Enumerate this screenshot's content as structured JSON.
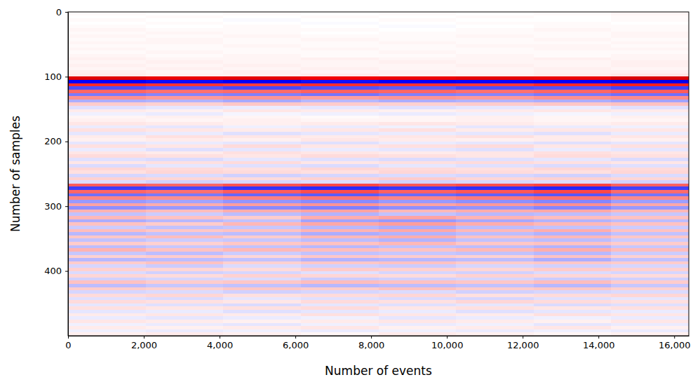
{
  "chart_data": {
    "type": "heatmap",
    "x_label": "Number of events",
    "y_label": "Number of samples",
    "xlim": [
      0,
      16384
    ],
    "ylim": [
      0,
      500
    ],
    "xticks": [
      0,
      {
        "value": 2000,
        "label": "2,000"
      },
      {
        "value": 4000,
        "label": "4,000"
      },
      {
        "value": 6000,
        "label": "6,000"
      },
      {
        "value": 8000,
        "label": "8,000"
      },
      {
        "value": 10000,
        "label": "10,000"
      },
      {
        "value": 12000,
        "label": "12,000"
      },
      {
        "value": 14000,
        "label": "14,000"
      },
      {
        "value": 16000,
        "label": "16,000"
      }
    ],
    "yticks": [
      0,
      100,
      200,
      300,
      400
    ],
    "zlim": [
      -1,
      1
    ],
    "x_edges": [
      0,
      2048,
      4096,
      6144,
      8192,
      10240,
      12288,
      14336,
      16384
    ],
    "y_edges": [
      0,
      5,
      10,
      15,
      20,
      25,
      30,
      35,
      40,
      45,
      50,
      55,
      60,
      65,
      70,
      75,
      80,
      85,
      90,
      95,
      100,
      105,
      110,
      115,
      120,
      125,
      130,
      135,
      140,
      145,
      150,
      155,
      160,
      165,
      170,
      175,
      180,
      185,
      190,
      195,
      200,
      205,
      210,
      215,
      220,
      225,
      230,
      235,
      240,
      245,
      250,
      255,
      260,
      265,
      270,
      275,
      280,
      285,
      290,
      295,
      300,
      305,
      310,
      315,
      320,
      325,
      330,
      335,
      340,
      345,
      350,
      355,
      360,
      365,
      370,
      375,
      380,
      385,
      390,
      395,
      400,
      405,
      410,
      415,
      420,
      425,
      430,
      435,
      440,
      445,
      450,
      455,
      460,
      465,
      470,
      475,
      480,
      485,
      490,
      495,
      500
    ],
    "values": [
      [
        0.01,
        0.0,
        0.01,
        0.0,
        0.01,
        0.0,
        0.01,
        0.02
      ],
      [
        0.0,
        0.01,
        0.0,
        0.01,
        0.0,
        0.01,
        0.0,
        0.01
      ],
      [
        0.01,
        0.0,
        -0.01,
        0.0,
        0.01,
        0.0,
        0.0,
        0.01
      ],
      [
        0.0,
        0.01,
        0.0,
        -0.01,
        0.0,
        0.01,
        0.01,
        0.0
      ],
      [
        0.01,
        0.0,
        0.01,
        0.0,
        -0.01,
        0.0,
        0.01,
        0.01
      ],
      [
        0.02,
        0.01,
        0.01,
        0.01,
        0.0,
        0.01,
        0.02,
        0.01
      ],
      [
        0.01,
        0.02,
        0.01,
        0.0,
        0.01,
        0.01,
        0.01,
        0.02
      ],
      [
        0.02,
        0.01,
        0.02,
        0.01,
        0.01,
        0.02,
        0.01,
        0.02
      ],
      [
        0.01,
        0.02,
        0.01,
        0.02,
        0.01,
        0.01,
        0.02,
        0.01
      ],
      [
        0.02,
        0.02,
        0.01,
        0.01,
        0.02,
        0.01,
        0.01,
        0.02
      ],
      [
        0.01,
        0.01,
        0.02,
        0.01,
        0.01,
        0.02,
        0.02,
        0.01
      ],
      [
        0.02,
        0.01,
        0.01,
        0.02,
        0.01,
        0.01,
        0.02,
        0.02
      ],
      [
        0.01,
        0.02,
        0.01,
        0.01,
        0.02,
        0.01,
        0.01,
        0.01
      ],
      [
        0.02,
        0.01,
        0.02,
        0.01,
        0.01,
        0.02,
        0.01,
        0.02
      ],
      [
        0.03,
        0.02,
        0.02,
        0.03,
        0.02,
        0.02,
        0.03,
        0.02
      ],
      [
        0.02,
        0.03,
        0.02,
        0.02,
        0.03,
        0.02,
        0.02,
        0.03
      ],
      [
        0.03,
        0.02,
        0.03,
        0.02,
        0.02,
        0.03,
        0.02,
        0.03
      ],
      [
        0.02,
        0.03,
        0.02,
        0.03,
        0.02,
        0.02,
        0.03,
        0.02
      ],
      [
        0.03,
        0.02,
        0.03,
        0.02,
        0.03,
        0.02,
        0.03,
        0.03
      ],
      [
        0.04,
        0.03,
        0.03,
        0.04,
        0.03,
        0.03,
        0.04,
        0.05
      ],
      [
        0.62,
        0.58,
        0.6,
        0.55,
        0.57,
        0.6,
        0.58,
        0.65
      ],
      [
        -0.5,
        -0.48,
        -0.52,
        -0.47,
        -0.5,
        -0.49,
        -0.51,
        -0.55
      ],
      [
        0.42,
        0.4,
        0.38,
        0.41,
        0.4,
        0.39,
        0.42,
        0.44
      ],
      [
        -0.35,
        -0.33,
        -0.36,
        -0.34,
        -0.32,
        -0.35,
        -0.34,
        -0.37
      ],
      [
        0.3,
        0.28,
        0.29,
        0.31,
        0.3,
        0.28,
        0.3,
        0.32
      ],
      [
        -0.26,
        -0.24,
        -0.25,
        -0.27,
        -0.25,
        -0.24,
        -0.26,
        -0.28
      ],
      [
        0.22,
        0.2,
        0.21,
        0.19,
        0.21,
        0.2,
        0.22,
        0.23
      ],
      [
        -0.16,
        -0.15,
        -0.17,
        -0.14,
        -0.16,
        -0.15,
        -0.16,
        -0.18
      ],
      [
        0.1,
        0.09,
        0.11,
        0.1,
        0.09,
        0.1,
        0.11,
        0.12
      ],
      [
        -0.06,
        -0.05,
        -0.04,
        -0.05,
        -0.06,
        -0.05,
        -0.04,
        -0.06
      ],
      [
        0.04,
        0.03,
        0.05,
        0.04,
        0.03,
        0.04,
        0.05,
        0.04
      ],
      [
        -0.03,
        -0.04,
        -0.02,
        -0.03,
        -0.04,
        -0.03,
        -0.02,
        -0.03
      ],
      [
        0.02,
        0.03,
        0.02,
        0.01,
        0.02,
        0.03,
        0.02,
        0.03
      ],
      [
        0.03,
        0.02,
        0.03,
        0.02,
        0.02,
        0.03,
        0.02,
        0.02
      ],
      [
        0.05,
        0.04,
        0.03,
        0.04,
        0.05,
        0.04,
        0.03,
        0.04
      ],
      [
        -0.04,
        -0.05,
        -0.03,
        -0.04,
        -0.03,
        -0.05,
        -0.04,
        -0.03
      ],
      [
        0.06,
        0.05,
        0.04,
        0.05,
        0.06,
        0.04,
        0.05,
        0.05
      ],
      [
        -0.05,
        -0.04,
        -0.06,
        -0.05,
        -0.04,
        -0.05,
        -0.06,
        -0.04
      ],
      [
        0.04,
        0.06,
        0.05,
        0.04,
        0.05,
        0.06,
        0.04,
        0.05
      ],
      [
        0.03,
        0.04,
        0.03,
        0.05,
        0.04,
        0.03,
        0.04,
        0.03
      ],
      [
        -0.05,
        -0.04,
        -0.05,
        -0.06,
        -0.04,
        -0.05,
        -0.06,
        -0.05
      ],
      [
        0.06,
        0.05,
        0.07,
        0.05,
        0.06,
        0.07,
        0.05,
        0.06
      ],
      [
        -0.04,
        -0.06,
        -0.05,
        -0.04,
        -0.05,
        -0.06,
        -0.04,
        -0.05
      ],
      [
        0.05,
        0.04,
        0.06,
        0.05,
        0.04,
        0.05,
        0.06,
        0.05
      ],
      [
        0.07,
        0.06,
        0.05,
        0.07,
        0.06,
        0.05,
        0.07,
        0.06
      ],
      [
        -0.06,
        -0.07,
        -0.05,
        -0.06,
        -0.07,
        -0.06,
        -0.05,
        -0.07
      ],
      [
        0.05,
        0.06,
        0.07,
        0.05,
        0.06,
        0.07,
        0.06,
        0.05
      ],
      [
        -0.07,
        -0.05,
        -0.06,
        -0.07,
        -0.05,
        -0.06,
        -0.07,
        -0.06
      ],
      [
        0.08,
        0.07,
        0.06,
        0.08,
        0.07,
        0.06,
        0.08,
        0.07
      ],
      [
        0.06,
        0.08,
        0.07,
        0.06,
        0.08,
        0.07,
        0.06,
        0.08
      ],
      [
        -0.08,
        -0.07,
        -0.09,
        -0.08,
        -0.07,
        -0.08,
        -0.09,
        -0.07
      ],
      [
        0.09,
        0.08,
        0.07,
        0.09,
        0.1,
        0.08,
        0.09,
        0.08
      ],
      [
        -0.07,
        -0.09,
        -0.08,
        -0.07,
        -0.09,
        -0.08,
        -0.07,
        -0.09
      ],
      [
        0.32,
        0.3,
        0.34,
        0.36,
        0.33,
        0.35,
        0.37,
        0.31
      ],
      [
        -0.38,
        -0.36,
        -0.4,
        -0.42,
        -0.39,
        -0.41,
        -0.43,
        -0.37
      ],
      [
        0.3,
        0.28,
        0.32,
        0.35,
        0.31,
        0.33,
        0.36,
        0.29
      ],
      [
        -0.28,
        -0.26,
        -0.3,
        -0.32,
        -0.29,
        -0.31,
        -0.33,
        -0.27
      ],
      [
        0.24,
        0.22,
        0.25,
        0.27,
        0.24,
        0.26,
        0.28,
        0.23
      ],
      [
        -0.2,
        -0.18,
        -0.21,
        -0.23,
        -0.2,
        -0.22,
        -0.24,
        -0.19
      ],
      [
        0.18,
        0.16,
        0.19,
        0.21,
        0.18,
        0.2,
        0.22,
        0.17
      ],
      [
        -0.22,
        -0.2,
        -0.23,
        -0.25,
        -0.22,
        -0.21,
        -0.24,
        -0.2
      ],
      [
        0.15,
        0.13,
        0.16,
        0.18,
        0.14,
        0.16,
        0.17,
        0.14
      ],
      [
        -0.12,
        -0.1,
        -0.13,
        -0.15,
        -0.12,
        -0.14,
        -0.13,
        -0.11
      ],
      [
        0.14,
        0.12,
        0.1,
        0.16,
        0.18,
        0.15,
        0.13,
        0.12
      ],
      [
        -0.16,
        -0.14,
        -0.12,
        -0.18,
        -0.2,
        -0.17,
        -0.15,
        -0.13
      ],
      [
        0.12,
        0.1,
        0.14,
        0.17,
        0.19,
        0.16,
        0.14,
        0.12
      ],
      [
        -0.1,
        -0.12,
        -0.11,
        -0.14,
        -0.16,
        -0.13,
        -0.12,
        -0.1
      ],
      [
        0.13,
        0.11,
        0.12,
        0.15,
        0.17,
        0.14,
        0.16,
        0.12
      ],
      [
        -0.14,
        -0.12,
        -0.13,
        -0.16,
        -0.15,
        -0.13,
        -0.15,
        -0.12
      ],
      [
        0.11,
        0.13,
        0.1,
        0.14,
        0.16,
        0.12,
        0.14,
        0.11
      ],
      [
        -0.12,
        -0.1,
        -0.11,
        -0.13,
        -0.15,
        -0.12,
        -0.13,
        -0.1
      ],
      [
        0.1,
        0.09,
        0.11,
        0.12,
        0.14,
        0.11,
        0.12,
        0.1
      ],
      [
        -0.13,
        -0.11,
        -0.12,
        -0.14,
        -0.12,
        -0.13,
        -0.15,
        -0.11
      ],
      [
        0.15,
        0.12,
        0.14,
        0.13,
        0.12,
        0.14,
        0.16,
        0.13
      ],
      [
        -0.11,
        -0.13,
        -0.1,
        -0.12,
        -0.11,
        -0.12,
        -0.14,
        -0.1
      ],
      [
        0.09,
        0.1,
        0.08,
        0.11,
        0.1,
        0.09,
        0.12,
        0.09
      ],
      [
        -0.14,
        -0.13,
        -0.12,
        -0.15,
        -0.14,
        -0.13,
        -0.16,
        -0.12
      ],
      [
        0.1,
        0.12,
        0.09,
        0.11,
        0.12,
        0.1,
        0.11,
        0.1
      ],
      [
        -0.08,
        -0.1,
        -0.07,
        -0.09,
        -0.1,
        -0.08,
        -0.09,
        -0.08
      ],
      [
        0.09,
        0.08,
        0.07,
        0.1,
        0.09,
        0.08,
        0.1,
        0.09
      ],
      [
        -0.07,
        -0.09,
        -0.08,
        -0.06,
        -0.08,
        -0.09,
        -0.07,
        -0.08
      ],
      [
        0.08,
        0.07,
        0.09,
        0.08,
        0.07,
        0.09,
        0.08,
        0.07
      ],
      [
        -0.09,
        -0.08,
        -0.07,
        -0.1,
        -0.09,
        -0.08,
        -0.1,
        -0.09
      ],
      [
        0.12,
        0.1,
        0.11,
        0.13,
        0.12,
        0.11,
        0.13,
        0.1
      ],
      [
        -0.13,
        -0.11,
        -0.12,
        -0.14,
        -0.13,
        -0.12,
        -0.14,
        -0.11
      ],
      [
        0.1,
        0.09,
        0.11,
        0.1,
        0.12,
        0.1,
        0.11,
        0.09
      ],
      [
        -0.08,
        -0.07,
        -0.09,
        -0.08,
        -0.07,
        -0.09,
        -0.08,
        -0.07
      ],
      [
        0.07,
        0.08,
        0.06,
        0.07,
        0.08,
        0.06,
        0.07,
        0.08
      ],
      [
        -0.06,
        -0.07,
        -0.05,
        -0.06,
        -0.07,
        -0.08,
        -0.06,
        -0.05
      ],
      [
        0.07,
        0.06,
        0.05,
        0.07,
        0.06,
        0.08,
        0.07,
        0.06
      ],
      [
        -0.05,
        -0.06,
        -0.07,
        -0.05,
        -0.06,
        -0.05,
        -0.07,
        -0.06
      ],
      [
        0.06,
        0.05,
        0.06,
        0.07,
        0.05,
        0.06,
        0.05,
        0.06
      ],
      [
        -0.05,
        -0.04,
        -0.06,
        -0.05,
        -0.04,
        -0.06,
        -0.05,
        -0.04
      ],
      [
        0.04,
        0.05,
        0.04,
        0.06,
        0.05,
        0.04,
        0.06,
        0.05
      ],
      [
        -0.04,
        -0.05,
        -0.04,
        -0.03,
        -0.05,
        -0.04,
        -0.03,
        -0.04
      ],
      [
        0.05,
        0.04,
        0.03,
        0.04,
        0.05,
        0.04,
        0.03,
        0.05
      ],
      [
        -0.03,
        -0.04,
        -0.05,
        -0.03,
        -0.04,
        -0.03,
        -0.05,
        -0.04
      ],
      [
        0.04,
        0.03,
        0.04,
        0.05,
        0.03,
        0.04,
        0.05,
        0.03
      ],
      [
        -0.03,
        -0.04,
        -0.03,
        -0.04,
        -0.03,
        -0.04,
        -0.03,
        -0.04
      ],
      [
        0.03,
        0.04,
        0.03,
        0.02,
        0.04,
        0.03,
        0.02,
        0.03
      ]
    ]
  }
}
